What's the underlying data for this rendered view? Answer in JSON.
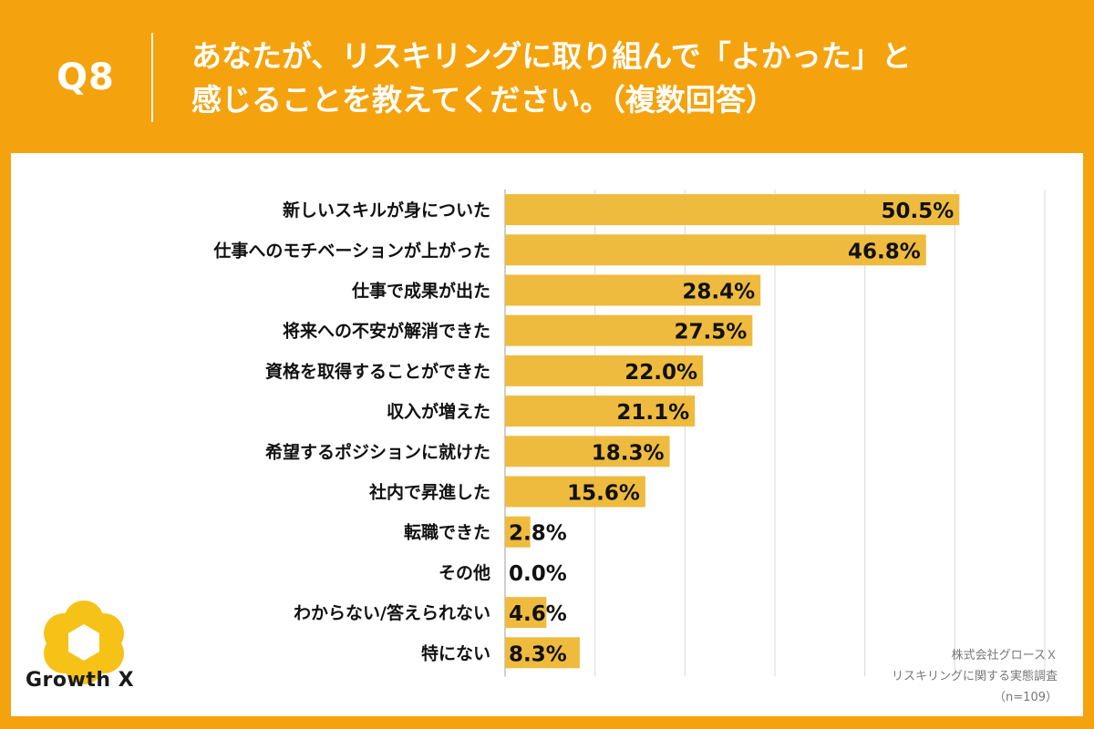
{
  "header": {
    "question_number": "Q8",
    "title_line1": "あなたが、リスキリングに取り組んで「よかった」と",
    "title_line2": "感じることを教えてください。（複数回答）"
  },
  "colors": {
    "background": "#f4a30e",
    "bar": "#eebb3e",
    "grid": "#d9d9d9",
    "text": "#111111"
  },
  "chart_data": {
    "type": "bar",
    "orientation": "horizontal",
    "categories": [
      "新しいスキルが身についた",
      "仕事へのモチベーションが上がった",
      "仕事で成果が出た",
      "将来への不安が解消できた",
      "資格を取得することができた",
      "収入が増えた",
      "希望するポジションに就けた",
      "社内で昇進した",
      "転職できた",
      "その他",
      "わからない/答えられない",
      "特にない"
    ],
    "values": [
      50.5,
      46.8,
      28.4,
      27.5,
      22.0,
      21.1,
      18.3,
      15.6,
      2.8,
      0.0,
      4.6,
      8.3
    ],
    "value_labels": [
      "50.5%",
      "46.8%",
      "28.4%",
      "27.5%",
      "22.0%",
      "21.1%",
      "18.3%",
      "15.6%",
      "2.8%",
      "0.0%",
      "4.6%",
      "8.3%"
    ],
    "xlim": [
      0,
      60
    ],
    "gridlines": [
      0,
      10,
      20,
      30,
      40,
      50,
      60
    ],
    "unit": "%"
  },
  "logo": {
    "name": "GrowthX",
    "text": "Growth X"
  },
  "source": {
    "line1": "株式会社グロースＸ",
    "line2": "リスキリングに関する実態調査",
    "line3": "（n=109）"
  }
}
